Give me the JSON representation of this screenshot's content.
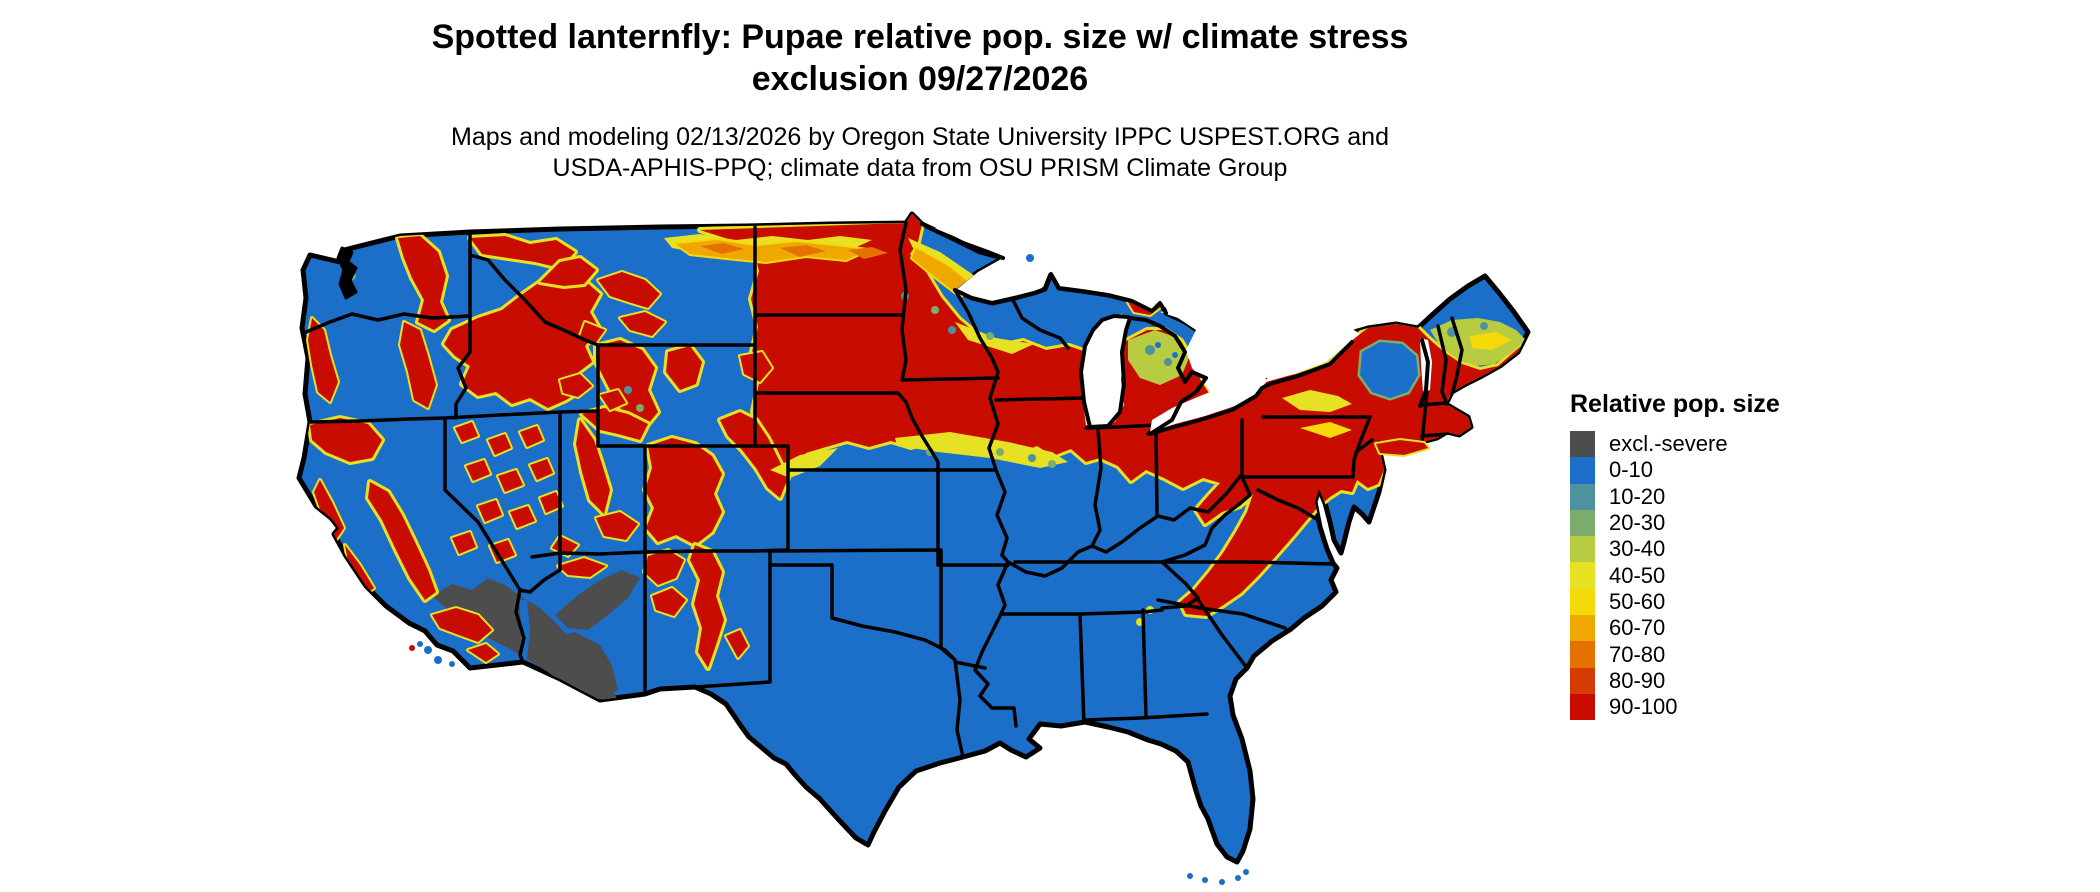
{
  "title": {
    "line1": "Spotted lanternfly: Pupae relative pop. size w/ climate stress",
    "line2": "exclusion 09/27/2026"
  },
  "subtitle": {
    "line1": "Maps and modeling 02/13/2026 by Oregon State University IPPC USPEST.ORG and",
    "line2": "USDA-APHIS-PPQ; climate data from OSU PRISM Climate Group"
  },
  "legend": {
    "title": "Relative pop. size",
    "items": [
      {
        "label": "excl.-severe",
        "color": "#4D4D4D"
      },
      {
        "label": "0-10",
        "color": "#1B6FC8"
      },
      {
        "label": "10-20",
        "color": "#4E92A0"
      },
      {
        "label": "20-30",
        "color": "#7CAD6C"
      },
      {
        "label": "30-40",
        "color": "#B8CC42"
      },
      {
        "label": "40-50",
        "color": "#E6E223"
      },
      {
        "label": "50-60",
        "color": "#F5D90A"
      },
      {
        "label": "60-70",
        "color": "#EFA800"
      },
      {
        "label": "70-80",
        "color": "#E57100"
      },
      {
        "label": "80-90",
        "color": "#D53C03"
      },
      {
        "label": "90-100",
        "color": "#C80D00"
      }
    ]
  },
  "map": {
    "type": "raster-choropleth",
    "area": "contiguous United States with state boundaries",
    "water_color": "#FFFFFF",
    "boundary_color": "#000000",
    "pattern_notes": [
      "90-100 class (red) covers the northern plains (E Montana, Dakotas, S Minnesota, Iowa, S Wisconsin, lower Michigan, N Illinois/Indiana, Ohio, Pennsylvania, New York, S New England) and western mountain ranges (Cascades, Sierra Nevada, Idaho/Montana Rockies, Wyoming, Utah, Colorado, New Mexico chains) plus an Appalachian stripe to N Georgia",
      "0-10 class (blue) covers the South, Southeast, Texas, Great Basin valleys, Pacific valleys, N Minnesota/Wisconsin/Michigan and N Maine",
      "excl.-severe (gray) covers SE California and SW Arizona deserts",
      "orange/yellow transition band along the northern Montana/Dakota/Minnesota border and around all red zones"
    ]
  },
  "colors": {
    "page_bg": "#FFFFFF"
  }
}
